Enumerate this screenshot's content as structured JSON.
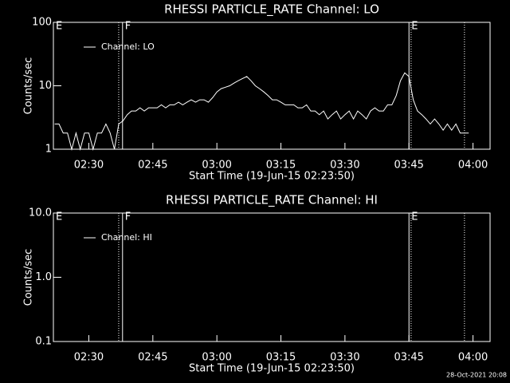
{
  "chart_data": [
    {
      "type": "line",
      "title": "RHESSI PARTICLE_RATE Channel: LO",
      "xlabel": "Start Time (19-Jun-15 02:23:50)",
      "ylabel": "Counts/sec",
      "log_y": true,
      "xlim": [
        141.7,
        244
      ],
      "ylim": [
        1,
        100
      ],
      "yticks": [
        1,
        10,
        100
      ],
      "xticks": [
        {
          "value": 150,
          "label": "02:30"
        },
        {
          "value": 165,
          "label": "02:45"
        },
        {
          "value": 180,
          "label": "03:00"
        },
        {
          "value": 195,
          "label": "03:15"
        },
        {
          "value": 210,
          "label": "03:30"
        },
        {
          "value": 225,
          "label": "03:45"
        },
        {
          "value": 240,
          "label": "04:00"
        }
      ],
      "markers": [
        {
          "x": 141.7,
          "label": "E",
          "style": "solid"
        },
        {
          "x": 157,
          "style": "dotted"
        },
        {
          "x": 157.9,
          "label": "F",
          "style": "solid"
        },
        {
          "x": 225,
          "label": "E",
          "style": "solid"
        },
        {
          "x": 225.5,
          "style": "dotted"
        },
        {
          "x": 238,
          "style": "dotted"
        }
      ],
      "x": [
        142,
        143,
        144,
        145,
        146,
        147,
        148,
        149,
        150,
        151,
        152,
        153,
        154,
        155,
        156,
        157,
        158,
        159,
        160,
        161,
        162,
        163,
        164,
        165,
        166,
        167,
        168,
        169,
        170,
        171,
        172,
        173,
        174,
        175,
        176,
        177,
        178,
        179,
        180,
        181,
        182,
        183,
        184,
        185,
        186,
        187,
        188,
        189,
        190,
        191,
        192,
        193,
        194,
        195,
        196,
        197,
        198,
        199,
        200,
        201,
        202,
        203,
        204,
        205,
        206,
        207,
        208,
        209,
        210,
        211,
        212,
        213,
        214,
        215,
        216,
        217,
        218,
        219,
        220,
        221,
        222,
        223,
        224,
        225,
        226,
        227,
        228,
        229,
        230,
        231,
        232,
        233,
        234,
        235,
        236,
        237,
        238,
        239
      ],
      "series": [
        {
          "name": "Channel: LO",
          "color": "#ffffff",
          "values": [
            2.5,
            2.5,
            1.8,
            1.8,
            1,
            1.8,
            1,
            1.8,
            1.8,
            1,
            1.8,
            1.8,
            2.5,
            1.8,
            1,
            2.5,
            2.8,
            3.5,
            4,
            4,
            4.5,
            4,
            4.5,
            4.5,
            4.5,
            5,
            4.5,
            5,
            5,
            5.5,
            5,
            5.5,
            6,
            5.5,
            6,
            6,
            5.5,
            6.5,
            8,
            9,
            9.5,
            10,
            11,
            12,
            13,
            14,
            12,
            10,
            9,
            8,
            7,
            6,
            6,
            5.5,
            5,
            5,
            5,
            4.5,
            4.5,
            5,
            4,
            4,
            3.5,
            4,
            3,
            3.5,
            4,
            3,
            3.5,
            4,
            3,
            4,
            3.5,
            3,
            4,
            4.5,
            4,
            4,
            5,
            5,
            7,
            12,
            16,
            14,
            6,
            4,
            3.5,
            3,
            2.5,
            3,
            2.5,
            2,
            2.5,
            2,
            2.5,
            1.8,
            1.8,
            1.8
          ]
        }
      ]
    },
    {
      "type": "line",
      "title": "RHESSI PARTICLE_RATE Channel: HI",
      "xlabel": "Start Time (19-Jun-15 02:23:50)",
      "ylabel": "Counts/sec",
      "log_y": true,
      "xlim": [
        141.7,
        244
      ],
      "ylim": [
        0.1,
        10
      ],
      "yticks": [
        0.1,
        {
          "value": 1,
          "label": "1.0"
        },
        {
          "value": 10,
          "label": "10.0"
        }
      ],
      "xticks": [
        {
          "value": 150,
          "label": "02:30"
        },
        {
          "value": 165,
          "label": "02:45"
        },
        {
          "value": 180,
          "label": "03:00"
        },
        {
          "value": 195,
          "label": "03:15"
        },
        {
          "value": 210,
          "label": "03:30"
        },
        {
          "value": 225,
          "label": "03:45"
        },
        {
          "value": 240,
          "label": "04:00"
        }
      ],
      "markers": [
        {
          "x": 141.7,
          "label": "E",
          "style": "solid"
        },
        {
          "x": 157,
          "style": "dotted"
        },
        {
          "x": 157.9,
          "label": "F",
          "style": "solid"
        },
        {
          "x": 225,
          "label": "E",
          "style": "solid"
        },
        {
          "x": 225.5,
          "style": "dotted"
        },
        {
          "x": 238,
          "style": "dotted"
        }
      ],
      "x": [],
      "series": [
        {
          "name": "Channel: HI",
          "color": "#ffffff",
          "values": []
        }
      ]
    }
  ],
  "footer": "28-Oct-2021 20:08"
}
